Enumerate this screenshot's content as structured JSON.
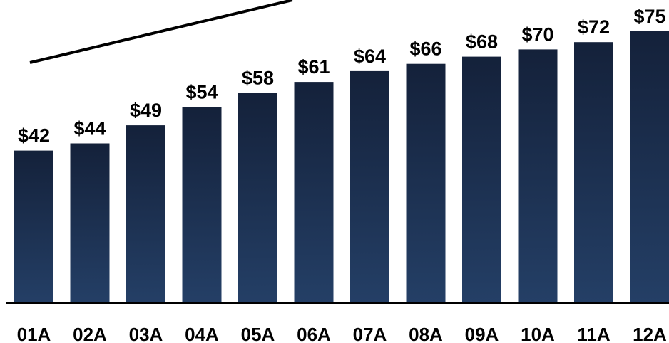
{
  "chart_data": {
    "type": "bar",
    "categories": [
      "01A",
      "02A",
      "03A",
      "04A",
      "05A",
      "06A",
      "07A",
      "08A",
      "09A",
      "10A",
      "11A",
      "12A"
    ],
    "values": [
      42,
      44,
      49,
      54,
      58,
      61,
      64,
      66,
      68,
      70,
      72,
      75
    ],
    "data_labels": [
      "$42",
      "$44",
      "$49",
      "$54",
      "$58",
      "$61",
      "$64",
      "$66",
      "$68",
      "$70",
      "$72",
      "$75"
    ],
    "title": "",
    "xlabel": "",
    "ylabel": "",
    "ylim": [
      0,
      75
    ],
    "grid": false,
    "legend": "none",
    "trend_line": true,
    "colors": {
      "bar_top": "#14213a",
      "bar_bottom": "#243f66",
      "axis": "#000000",
      "text": "#000000"
    }
  }
}
